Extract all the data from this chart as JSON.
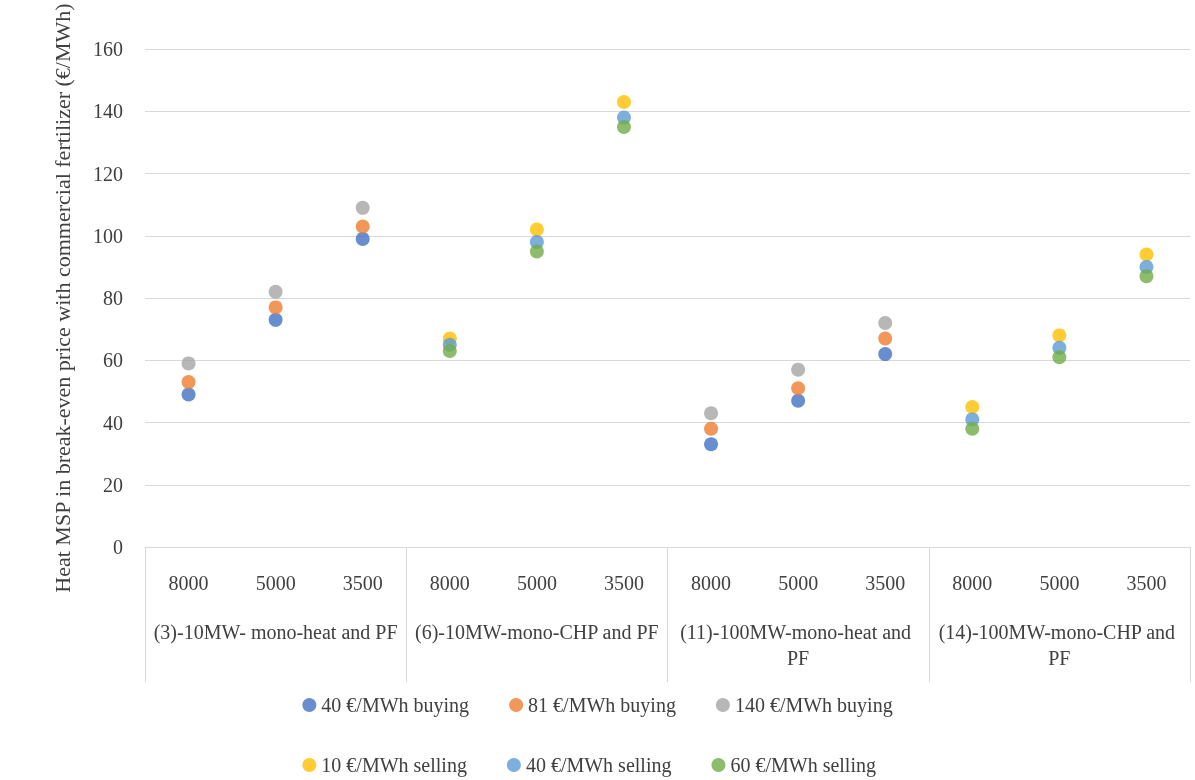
{
  "chart_data": {
    "type": "scatter",
    "ylabel": "Heat MSP in break-even price with commercial fertilizer (€/MWh)",
    "categories": [
      "8000",
      "5000",
      "3500",
      "8000",
      "5000",
      "3500",
      "8000",
      "5000",
      "3500",
      "8000",
      "5000",
      "3500"
    ],
    "annotations": [
      "(3)-10MW- mono-heat and PF",
      "(6)-10MW-mono-CHP and PF",
      "(11)-100MW-mono-heat and PF",
      "(14)-100MW-mono-CHP and PF"
    ],
    "series": [
      {
        "name": "40 €/MWh buying",
        "color": "#4472c4",
        "values": [
          49,
          73,
          99,
          null,
          null,
          null,
          33,
          47,
          62,
          null,
          null,
          null
        ]
      },
      {
        "name": "81 €/MWh buying",
        "color": "#ed7d31",
        "values": [
          53,
          77,
          103,
          null,
          null,
          null,
          38,
          51,
          67,
          null,
          null,
          null
        ]
      },
      {
        "name": "140 €/MWh buying",
        "color": "#a5a5a5",
        "values": [
          59,
          82,
          109,
          null,
          null,
          null,
          43,
          57,
          72,
          null,
          null,
          null
        ]
      },
      {
        "name": "10 €/MWh selling",
        "color": "#ffc000",
        "values": [
          null,
          null,
          null,
          67,
          102,
          143,
          null,
          null,
          null,
          45,
          68,
          94
        ]
      },
      {
        "name": "40 €/MWh selling",
        "color": "#5b9bd5",
        "values": [
          null,
          null,
          null,
          65,
          98,
          138,
          null,
          null,
          null,
          41,
          64,
          90
        ]
      },
      {
        "name": "60 €/MWh selling",
        "color": "#70ad47",
        "values": [
          null,
          null,
          null,
          63,
          95,
          135,
          null,
          null,
          null,
          38,
          61,
          87
        ]
      }
    ],
    "ylim": [
      0,
      160
    ],
    "yticks": [
      0,
      20,
      40,
      60,
      80,
      100,
      120,
      140,
      160
    ],
    "grid": "y",
    "legend": "bottom",
    "marker": "circle"
  }
}
